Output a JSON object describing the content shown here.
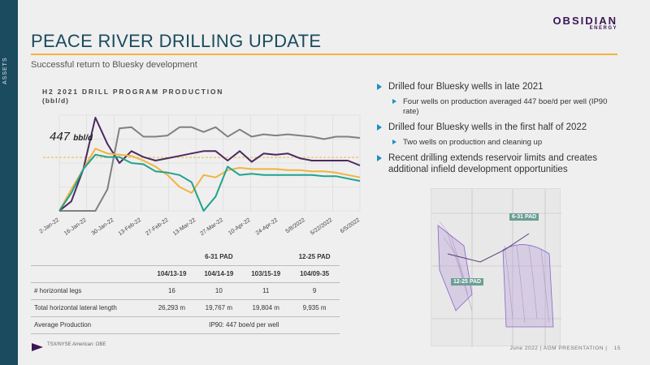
{
  "side_label": "ASSETS",
  "logo": {
    "line1": "OBSIDIAN",
    "line2": "ENERGY"
  },
  "title": "PEACE RIVER DRILLING UPDATE",
  "subtitle": "Successful return to Bluesky development",
  "colors": {
    "accent": "#f2b33d",
    "teal": "#1b4b5e",
    "purple": "#3a1656",
    "bullet": "#1b8fc4"
  },
  "chart_data": {
    "type": "line",
    "title": "H2 2021 DRILL PROGRAM PRODUCTION",
    "units": "(bbl/d)",
    "annotation": {
      "value": "447",
      "unit": "bbl/d"
    },
    "reference_line": 447,
    "x_ticks": [
      "2-Jan-22",
      "16-Jan-22",
      "30-Jan-22",
      "13-Feb-22",
      "27-Feb-22",
      "13-Mar-22",
      "27-Mar-22",
      "10-Apr-22",
      "24-Apr-22",
      "5/8/2022",
      "5/22/2022",
      "6/5/2022"
    ],
    "ylim": [
      0,
      800
    ],
    "grid": true,
    "series": [
      {
        "color": "#808080",
        "values": [
          0,
          0,
          0,
          0,
          180,
          690,
          700,
          620,
          620,
          630,
          700,
          700,
          660,
          700,
          620,
          680,
          620,
          640,
          630,
          640,
          630,
          620,
          600,
          620,
          620,
          610
        ]
      },
      {
        "color": "#4b2a60",
        "values": [
          0,
          80,
          350,
          780,
          560,
          400,
          500,
          450,
          420,
          440,
          460,
          480,
          500,
          500,
          420,
          500,
          410,
          480,
          470,
          480,
          440,
          420,
          420,
          420,
          420,
          380
        ]
      },
      {
        "color": "#f2b33d",
        "values": [
          0,
          180,
          350,
          520,
          480,
          470,
          460,
          420,
          370,
          300,
          200,
          150,
          300,
          280,
          340,
          360,
          350,
          350,
          350,
          340,
          340,
          330,
          330,
          320,
          300,
          280
        ]
      },
      {
        "color": "#1fa38f",
        "values": [
          0,
          150,
          350,
          470,
          450,
          450,
          400,
          390,
          330,
          320,
          300,
          240,
          0,
          120,
          370,
          300,
          310,
          300,
          300,
          300,
          300,
          300,
          290,
          290,
          270,
          250
        ]
      }
    ]
  },
  "bullets": [
    {
      "level": 1,
      "text": "Drilled four Bluesky wells in late 2021"
    },
    {
      "level": 2,
      "text": "Four wells on production averaged 447 boe/d per well (IP90 rate)"
    },
    {
      "level": 1,
      "text": "Drilled four Bluesky wells in the first half of 2022"
    },
    {
      "level": 2,
      "text": "Two wells on production and cleaning up"
    },
    {
      "level": 1,
      "text": "Recent drilling extends reservoir limits and creates additional infield development opportunities"
    }
  ],
  "table": {
    "pads": [
      "6-31 PAD",
      "12-25 PAD"
    ],
    "wells": [
      "104/13-19",
      "104/14-19",
      "103/15-19",
      "104/09-35"
    ],
    "rows": [
      {
        "label": "# horizontal legs",
        "values": [
          "16",
          "10",
          "11",
          "9"
        ]
      },
      {
        "label": "Total horizontal lateral length",
        "values": [
          "26,293 m",
          "19,767 m",
          "19,804 m",
          "9,935 m"
        ]
      },
      {
        "label": "Average Production",
        "merged": "IP90: 447 boe/d per well"
      }
    ]
  },
  "map": {
    "label_a": "6-31 PAD",
    "label_b": "12-25 PAD"
  },
  "footer": {
    "left": "TSX/NYSE American: OBE",
    "right": "June 2022  |  AGM PRESENTATION  |",
    "page": "15"
  }
}
